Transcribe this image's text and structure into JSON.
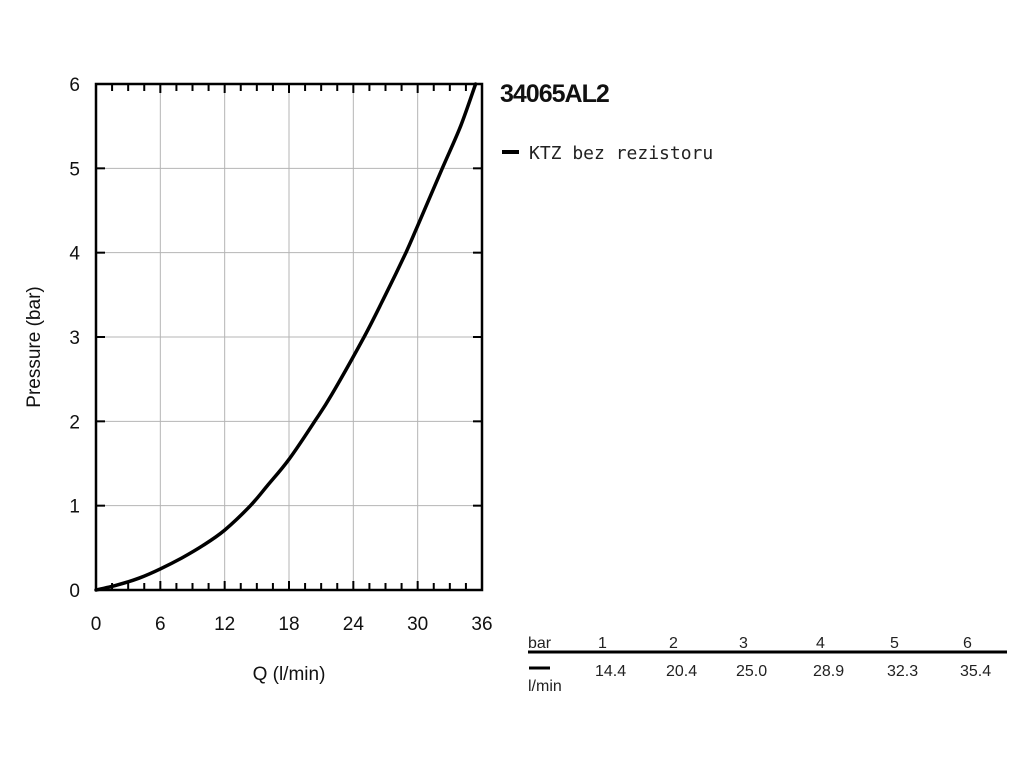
{
  "chart_data": {
    "type": "line",
    "title": "34065AL2",
    "xlabel": "Q (l/min)",
    "ylabel": "Pressure (bar)",
    "xlim": [
      0,
      36
    ],
    "ylim": [
      0,
      6
    ],
    "x_ticks": [
      "0",
      "6",
      "12",
      "18",
      "24",
      "30",
      "36"
    ],
    "y_ticks": [
      "0",
      "1",
      "2",
      "3",
      "4",
      "5",
      "6"
    ],
    "grid": true,
    "legend_position": "top-right (outside plot)",
    "series": [
      {
        "name": "KTZ bez rezistoru",
        "color": "#000000",
        "x": [
          0,
          2,
          4,
          6,
          8,
          10,
          12,
          14.4,
          16,
          18,
          20.4,
          22,
          25.0,
          27,
          28.9,
          30,
          32.3,
          34,
          35.4
        ],
        "y": [
          0,
          0.06,
          0.14,
          0.25,
          0.38,
          0.53,
          0.71,
          1,
          1.24,
          1.55,
          2,
          2.32,
          3,
          3.5,
          4,
          4.32,
          5,
          5.5,
          6
        ]
      }
    ],
    "table": {
      "header_label": "bar",
      "row_label": "l/min",
      "pressures": [
        "1",
        "2",
        "3",
        "4",
        "5",
        "6"
      ],
      "flows": [
        "14.4",
        "20.4",
        "25.0",
        "28.9",
        "32.3",
        "35.4"
      ]
    }
  }
}
